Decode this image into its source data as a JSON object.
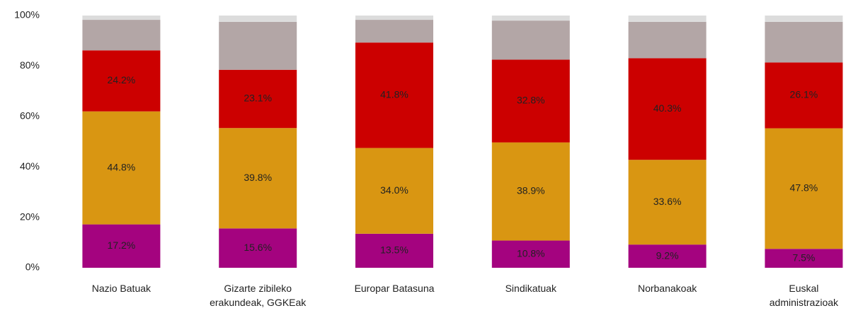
{
  "chart_data": {
    "type": "stacked_bar",
    "categories": [
      "Nazio Batuak",
      "Gizarte zibileko\nerakundeak, GGKEak",
      "Europar Batasuna",
      "Sindikatuak",
      "Norbanakoak",
      "Euskal\nadministrazioak"
    ],
    "series": [
      {
        "color": "#a4037f",
        "values": [
          17.2,
          15.6,
          13.5,
          10.8,
          9.2,
          7.5
        ],
        "value_labels": [
          "17.2%",
          "15.6%",
          "13.5%",
          "10.8%",
          "9.2%",
          "7.5%"
        ]
      },
      {
        "color": "#d99612",
        "values": [
          44.8,
          39.8,
          34.0,
          38.9,
          33.6,
          47.8
        ],
        "value_labels": [
          "44.8%",
          "39.8%",
          "34.0%",
          "38.9%",
          "33.6%",
          "47.8%"
        ]
      },
      {
        "color": "#cc0000",
        "values": [
          24.2,
          23.1,
          41.8,
          32.8,
          40.3,
          26.1
        ],
        "value_labels": [
          "24.2%",
          "23.1%",
          "41.8%",
          "32.8%",
          "40.3%",
          "26.1%"
        ]
      },
      {
        "color": "#b3a6a6",
        "values": [
          12.1,
          19.0,
          9.0,
          15.5,
          14.4,
          16.1
        ]
      },
      {
        "color": "#dcdcdc",
        "values": [
          1.7,
          2.5,
          1.7,
          2.0,
          2.5,
          2.5
        ]
      }
    ],
    "ylim": [
      0,
      100
    ],
    "yticks": [
      {
        "value": 0,
        "label": "0%"
      },
      {
        "value": 20,
        "label": "20%"
      },
      {
        "value": 40,
        "label": "40%"
      },
      {
        "value": 60,
        "label": "60%"
      },
      {
        "value": 80,
        "label": "80%"
      },
      {
        "value": 100,
        "label": "100%"
      }
    ],
    "grid": false
  }
}
